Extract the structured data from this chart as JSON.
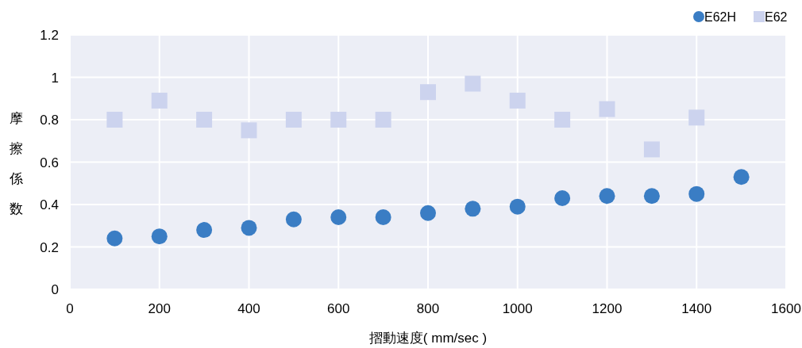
{
  "chart_data": {
    "type": "scatter",
    "xlabel": "摺動速度( mm/sec )",
    "ylabel": "摩擦係数",
    "xlim": [
      0,
      1600
    ],
    "xticks": [
      0,
      200,
      400,
      600,
      800,
      1000,
      1200,
      1400,
      1600
    ],
    "ylim": [
      0,
      1.2
    ],
    "yticks": [
      0,
      0.2,
      0.4,
      0.6,
      0.8,
      1,
      1.2
    ],
    "grid": true,
    "legend": "top right",
    "series": [
      {
        "name": "E62H",
        "color": "#3a7dc4",
        "marker": "circle",
        "x": [
          100,
          200,
          300,
          400,
          500,
          600,
          700,
          800,
          900,
          1000,
          1100,
          1200,
          1300,
          1400,
          1500
        ],
        "values": [
          0.24,
          0.25,
          0.28,
          0.29,
          0.33,
          0.34,
          0.34,
          0.36,
          0.38,
          0.39,
          0.43,
          0.44,
          0.44,
          0.45,
          0.53
        ]
      },
      {
        "name": "E62",
        "color": "#ccd3ee",
        "marker": "square",
        "x": [
          100,
          200,
          300,
          400,
          500,
          600,
          700,
          800,
          900,
          1000,
          1100,
          1200,
          1300,
          1400
        ],
        "values": [
          0.8,
          0.89,
          0.8,
          0.75,
          0.8,
          0.8,
          0.8,
          0.93,
          0.97,
          0.89,
          0.8,
          0.85,
          0.66,
          0.81
        ]
      }
    ]
  }
}
